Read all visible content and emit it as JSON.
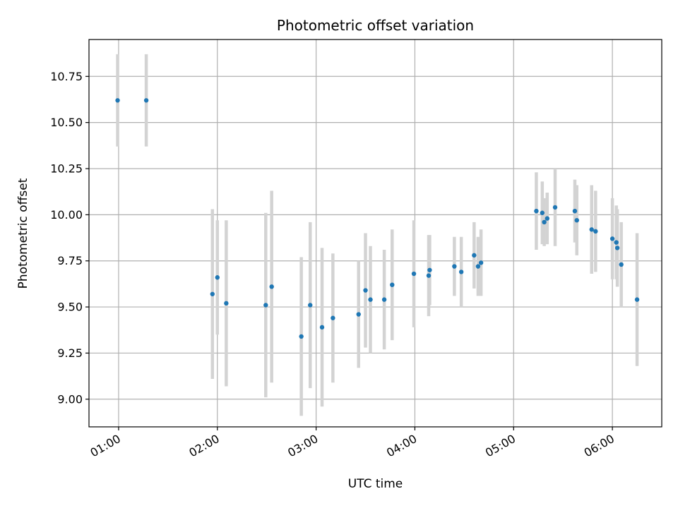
{
  "chart_data": {
    "type": "scatter",
    "title": "Photometric offset variation",
    "xlabel": "UTC time",
    "ylabel": "Photometric offset",
    "x_unit": "hours UTC",
    "xlim": [
      0.7,
      6.5
    ],
    "ylim": [
      8.85,
      10.95
    ],
    "xticks": [
      {
        "value": 1,
        "label": "01:00"
      },
      {
        "value": 2,
        "label": "02:00"
      },
      {
        "value": 3,
        "label": "03:00"
      },
      {
        "value": 4,
        "label": "04:00"
      },
      {
        "value": 5,
        "label": "05:00"
      },
      {
        "value": 6,
        "label": "06:00"
      }
    ],
    "yticks": [
      {
        "value": 9.0,
        "label": "9.00"
      },
      {
        "value": 9.25,
        "label": "9.25"
      },
      {
        "value": 9.5,
        "label": "9.50"
      },
      {
        "value": 9.75,
        "label": "9.75"
      },
      {
        "value": 10.0,
        "label": "10.00"
      },
      {
        "value": 10.25,
        "label": "10.25"
      },
      {
        "value": 10.5,
        "label": "10.50"
      },
      {
        "value": 10.75,
        "label": "10.75"
      }
    ],
    "grid": true,
    "point_color": "#1f77b4",
    "errorbar_color": "#d3d3d3",
    "points": [
      {
        "x": 0.99,
        "y": 10.62,
        "err": 0.25
      },
      {
        "x": 1.28,
        "y": 10.62,
        "err": 0.25
      },
      {
        "x": 1.95,
        "y": 9.57,
        "err": 0.46
      },
      {
        "x": 2.0,
        "y": 9.66,
        "err": 0.31
      },
      {
        "x": 2.09,
        "y": 9.52,
        "err": 0.45
      },
      {
        "x": 2.49,
        "y": 9.51,
        "err": 0.5
      },
      {
        "x": 2.55,
        "y": 9.61,
        "err": 0.52
      },
      {
        "x": 2.85,
        "y": 9.34,
        "err": 0.43
      },
      {
        "x": 2.94,
        "y": 9.51,
        "err": 0.45
      },
      {
        "x": 3.06,
        "y": 9.39,
        "err": 0.43
      },
      {
        "x": 3.17,
        "y": 9.44,
        "err": 0.35
      },
      {
        "x": 3.43,
        "y": 9.46,
        "err": 0.29
      },
      {
        "x": 3.5,
        "y": 9.59,
        "err": 0.31
      },
      {
        "x": 3.55,
        "y": 9.54,
        "err": 0.29
      },
      {
        "x": 3.69,
        "y": 9.54,
        "err": 0.27
      },
      {
        "x": 3.77,
        "y": 9.62,
        "err": 0.3
      },
      {
        "x": 3.99,
        "y": 9.68,
        "err": 0.29
      },
      {
        "x": 4.14,
        "y": 9.67,
        "err": 0.22
      },
      {
        "x": 4.15,
        "y": 9.7,
        "err": 0.19
      },
      {
        "x": 4.4,
        "y": 9.72,
        "err": 0.16
      },
      {
        "x": 4.47,
        "y": 9.69,
        "err": 0.19
      },
      {
        "x": 4.6,
        "y": 9.78,
        "err": 0.18
      },
      {
        "x": 4.64,
        "y": 9.72,
        "err": 0.16
      },
      {
        "x": 4.67,
        "y": 9.74,
        "err": 0.18
      },
      {
        "x": 5.23,
        "y": 10.02,
        "err": 0.21
      },
      {
        "x": 5.29,
        "y": 10.01,
        "err": 0.17
      },
      {
        "x": 5.31,
        "y": 9.96,
        "err": 0.13
      },
      {
        "x": 5.34,
        "y": 9.98,
        "err": 0.14
      },
      {
        "x": 5.42,
        "y": 10.04,
        "err": 0.21
      },
      {
        "x": 5.62,
        "y": 10.02,
        "err": 0.17
      },
      {
        "x": 5.64,
        "y": 9.97,
        "err": 0.19
      },
      {
        "x": 5.79,
        "y": 9.92,
        "err": 0.24
      },
      {
        "x": 5.83,
        "y": 9.91,
        "err": 0.22
      },
      {
        "x": 6.0,
        "y": 9.87,
        "err": 0.22
      },
      {
        "x": 6.04,
        "y": 9.85,
        "err": 0.2
      },
      {
        "x": 6.05,
        "y": 9.82,
        "err": 0.21
      },
      {
        "x": 6.09,
        "y": 9.73,
        "err": 0.23
      },
      {
        "x": 6.25,
        "y": 9.54,
        "err": 0.36
      }
    ]
  }
}
